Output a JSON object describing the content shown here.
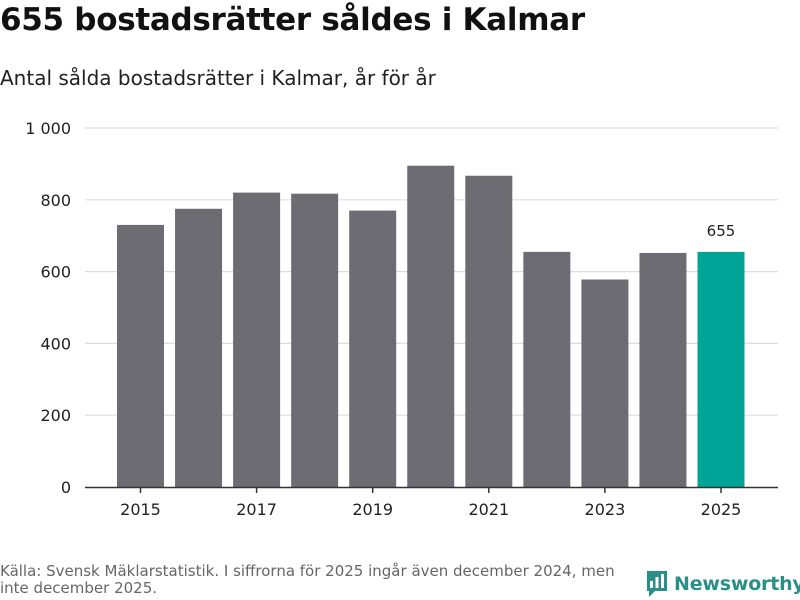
{
  "header": {
    "title": "655 bostadsrätter såldes i Kalmar",
    "subtitle": "Antal sålda bostadsrätter i Kalmar, år för år"
  },
  "footer": {
    "source": "Källa: Svensk Mäklarstatistik. I siffrorna för 2025 ingår även december 2024, men inte december 2025.",
    "logo_text": "Newsworthy",
    "logo_icon": "bar-chart-bubble-icon"
  },
  "colors": {
    "bar": "#6d6c72",
    "highlight": "#00a497",
    "grid": "#dddddd",
    "axis": "#333333",
    "brand": "#2a8f86"
  },
  "chart_data": {
    "type": "bar",
    "title": "655 bostadsrätter såldes i Kalmar",
    "subtitle": "Antal sålda bostadsrätter i Kalmar, år för år",
    "xlabel": "",
    "ylabel": "",
    "categories": [
      "2015",
      "2016",
      "2017",
      "2018",
      "2019",
      "2020",
      "2021",
      "2022",
      "2023",
      "2024",
      "2025"
    ],
    "values": [
      730,
      775,
      820,
      817,
      770,
      895,
      867,
      655,
      578,
      652,
      655
    ],
    "highlight_category": "2025",
    "data_labels": [
      {
        "category": "2025",
        "text": "655"
      }
    ],
    "ylim": [
      0,
      1000
    ],
    "y_ticks": [
      0,
      200,
      400,
      600,
      800,
      1000
    ],
    "y_tick_labels": [
      "0",
      "200",
      "400",
      "600",
      "800",
      "1 000"
    ],
    "x_tick_labels": [
      "2015",
      "2017",
      "2019",
      "2021",
      "2023",
      "2025"
    ],
    "grid": true,
    "legend": "none"
  }
}
